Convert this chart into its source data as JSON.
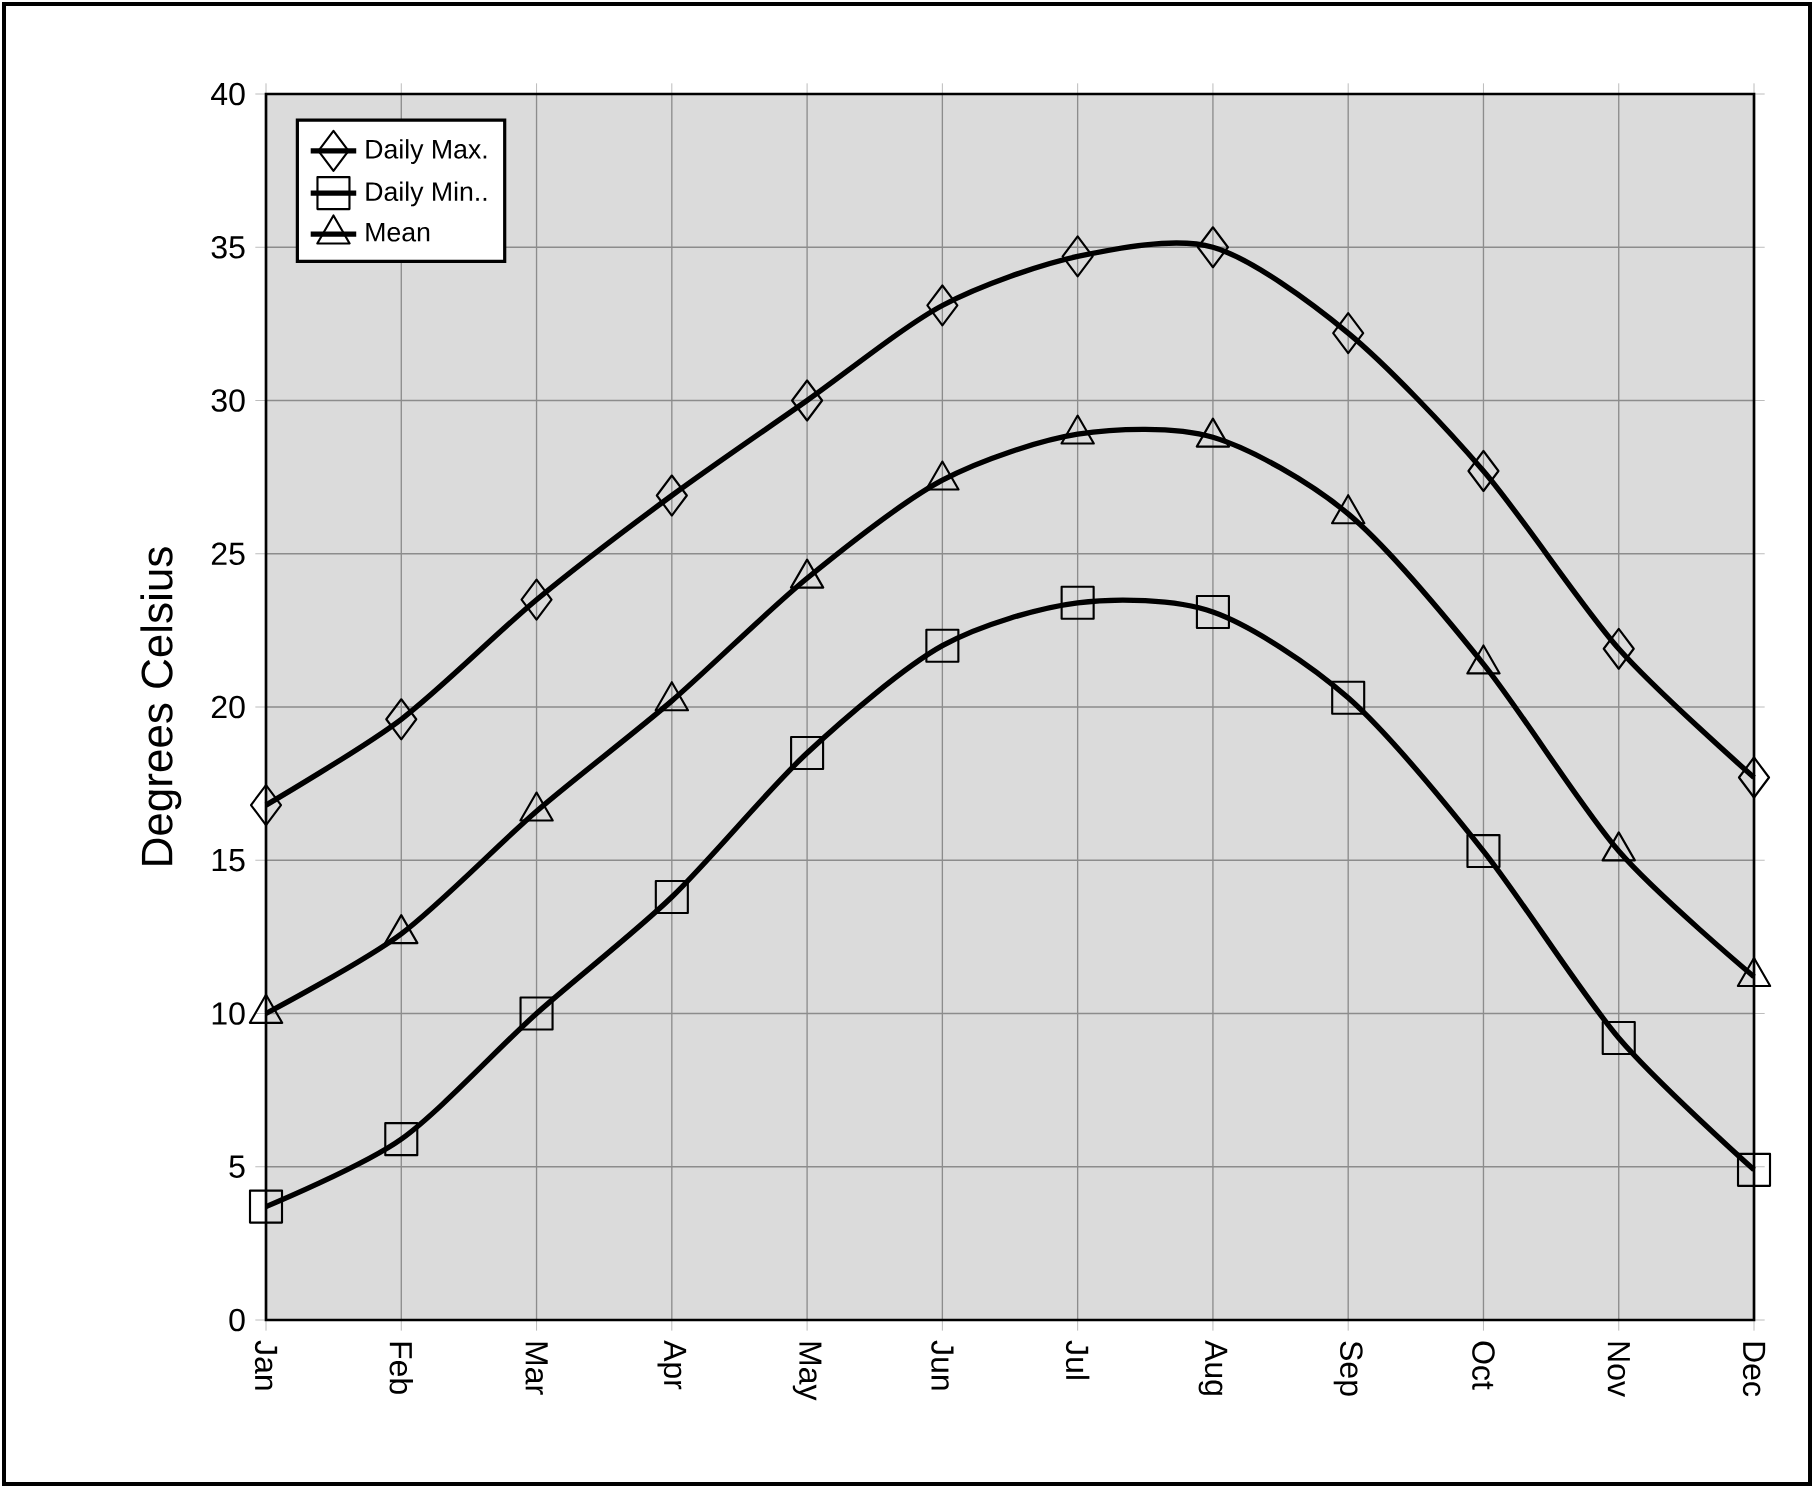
{
  "chart_data": {
    "type": "line",
    "ylabel": "Degrees Celsius",
    "categories": [
      "Jan",
      "Feb",
      "Mar",
      "Apr",
      "May",
      "Jun",
      "Jul",
      "Aug",
      "Sep",
      "Oct",
      "Nov",
      "Dec"
    ],
    "series": [
      {
        "name": "Daily Max.",
        "color": "#000000",
        "marker": "diamond",
        "values": [
          16.8,
          19.6,
          23.5,
          26.9,
          30.0,
          33.1,
          34.7,
          35.0,
          32.2,
          27.7,
          21.9,
          17.7
        ]
      },
      {
        "name": "Daily Min..",
        "color": "#000000",
        "marker": "square",
        "values": [
          3.7,
          5.9,
          10.0,
          13.8,
          18.5,
          22.0,
          23.4,
          23.1,
          20.3,
          15.3,
          9.2,
          4.9
        ]
      },
      {
        "name": "Mean",
        "color": "#000000",
        "marker": "triangle",
        "values": [
          10.0,
          12.6,
          16.6,
          20.2,
          24.2,
          27.4,
          28.9,
          28.8,
          26.3,
          21.4,
          15.3,
          11.2
        ]
      }
    ],
    "ylim": [
      0,
      40
    ],
    "yticks": [
      0,
      5,
      10,
      15,
      20,
      25,
      30,
      35,
      40
    ],
    "grid": true,
    "legend": "top left",
    "line_style": "solid"
  }
}
